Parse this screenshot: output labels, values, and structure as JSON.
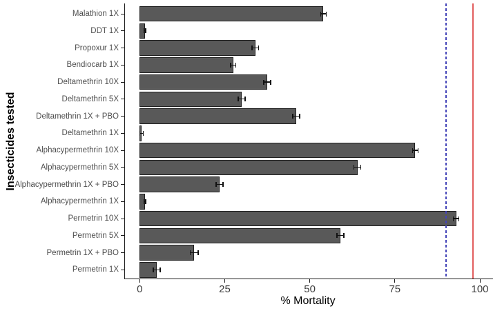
{
  "figure": {
    "background": "#ffffff"
  },
  "chart_data": {
    "type": "bar",
    "orientation": "horizontal",
    "title": "",
    "xlabel": "% Mortality",
    "ylabel": "Insecticides tested",
    "xlim": [
      0,
      100
    ],
    "x_ticks": [
      0,
      25,
      50,
      75,
      100
    ],
    "grid": false,
    "legend": false,
    "categories": [
      "Malathion 1X",
      "DDT 1X",
      "Propoxur 1X",
      "Bendiocarb 1X",
      "Deltamethrin 10X",
      "Deltamethrin 5X",
      "Deltamethrin 1X + PBO",
      "Deltamethrin 1X",
      "Alphacypermethrin 10X",
      "Alphacypermethrin 5X",
      "Alphacypermethrin 1X + PBO",
      "Alphacypermethrin 1X",
      "Permetrin 10X",
      "Permetrin 5X",
      "Permetrin 1X + PBO",
      "Permetrin 1X"
    ],
    "values": [
      54,
      1.5,
      34,
      27.5,
      37.5,
      30,
      46,
      0.5,
      81,
      64,
      23.5,
      1.5,
      93,
      59,
      16,
      5
    ],
    "errors": [
      0.8,
      0.3,
      1,
      0.8,
      1,
      1,
      1,
      0.5,
      0.8,
      1,
      1,
      0.3,
      0.8,
      1,
      1.2,
      1
    ],
    "reference_lines": [
      {
        "value": 90,
        "style": "dashed",
        "color": "#4444b8",
        "name": "susceptibility-threshold-90"
      },
      {
        "value": 98,
        "style": "solid",
        "color": "#e25d5d",
        "name": "susceptibility-threshold-98"
      }
    ],
    "bar_fill": "#595959",
    "bar_border": "#1f1f1f"
  }
}
